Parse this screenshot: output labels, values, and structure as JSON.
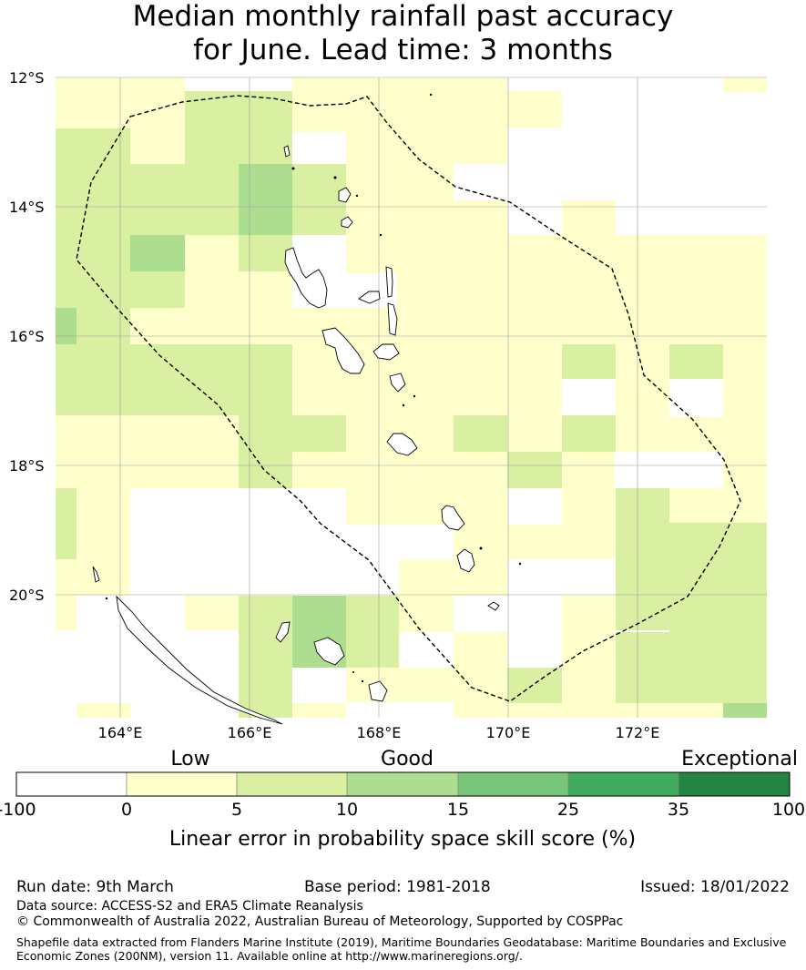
{
  "title": {
    "line1": "Median monthly rainfall past accuracy",
    "line2": "for June. Lead time: 3 months"
  },
  "map": {
    "lat_labels": [
      "12°S",
      "14°S",
      "16°S",
      "18°S",
      "20°S"
    ],
    "lon_labels": [
      "164°E",
      "166°E",
      "168°E",
      "170°E",
      "172°E"
    ],
    "extent": {
      "lon_min": 163,
      "lon_max": 174,
      "lat_max": -12,
      "lat_min": -22
    }
  },
  "legend": {
    "category_labels": [
      "Low",
      "Good",
      "Exceptional"
    ],
    "ticks": [
      "-100",
      "0",
      "5",
      "10",
      "15",
      "25",
      "35",
      "100"
    ],
    "colors": [
      "#ffffff",
      "#ffffcc",
      "#d9f0a3",
      "#addd8e",
      "#78c679",
      "#41ab5d",
      "#238443"
    ],
    "axis_label": "Linear error in probability space skill score (%)"
  },
  "footer": {
    "run_date": "Run date: 9th March",
    "base_period": "Base period: 1981-2018",
    "issued": "Issued: 18/01/2022",
    "data_source": "Data source: ACCESS-S2 and ERA5 Climate Reanalysis",
    "copyright": "© Commonwealth of Australia 2022, Australian Bureau of Meteorology, Supported by COSPPac",
    "shapefile1": "Shapefile data extracted from Flanders Marine Institute (2019), Maritime Boundaries Geodatabase: Maritime Boundaries and Exclusive",
    "shapefile2": "Economic Zones (200NM), version 11. Available online at http://www.marineregions.org/."
  }
}
